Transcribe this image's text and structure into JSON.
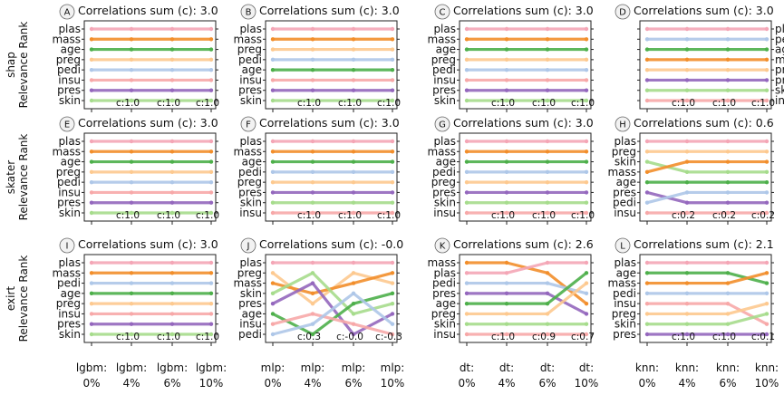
{
  "row_labels": [
    "shap\nRelevance Rank",
    "skater\nRelevance Rank",
    "exirt\nRelevance Rank"
  ],
  "x_tick_labels": [
    [
      "lgbm:\n0%",
      "lgbm:\n4%",
      "lgbm:\n6%",
      "lgbm:\n10%"
    ],
    [
      "mlp:\n0%",
      "mlp:\n4%",
      "mlp:\n6%",
      "mlp:\n10%"
    ],
    [
      "dt:\n0%",
      "dt:\n4%",
      "dt:\n6%",
      "dt:\n10%"
    ],
    [
      "knn:\n0%",
      "knn:\n4%",
      "knn:\n6%",
      "knn:\n10%"
    ]
  ],
  "feature_colors": {
    "plas": "#f4a6b6",
    "mass": "#f28e2b",
    "age": "#4daf4a",
    "preg": "#fdc98f",
    "pedi": "#aec7e8",
    "insu": "#f7a8a8",
    "pres": "#9467bd",
    "skin": "#a6dc8c"
  },
  "chart_data": [
    {
      "id": "A",
      "type": "line",
      "title": "Correlations sum (c): 3.0",
      "labels_side": "left",
      "order": [
        [
          "plas",
          "mass",
          "age",
          "preg",
          "pedi",
          "insu",
          "pres",
          "skin"
        ],
        [
          "plas",
          "mass",
          "age",
          "preg",
          "pedi",
          "insu",
          "pres",
          "skin"
        ],
        [
          "plas",
          "mass",
          "age",
          "preg",
          "pedi",
          "insu",
          "pres",
          "skin"
        ],
        [
          "plas",
          "mass",
          "age",
          "preg",
          "pedi",
          "insu",
          "pres",
          "skin"
        ]
      ],
      "c_labels": [
        "c:1.0",
        "c:1.0",
        "c:1.0"
      ]
    },
    {
      "id": "B",
      "type": "line",
      "title": "Correlations sum (c): 3.0",
      "labels_side": "left",
      "order": [
        [
          "plas",
          "mass",
          "preg",
          "pedi",
          "age",
          "insu",
          "pres",
          "skin"
        ],
        [
          "plas",
          "mass",
          "preg",
          "pedi",
          "age",
          "insu",
          "pres",
          "skin"
        ],
        [
          "plas",
          "mass",
          "preg",
          "pedi",
          "age",
          "insu",
          "pres",
          "skin"
        ],
        [
          "plas",
          "mass",
          "preg",
          "pedi",
          "age",
          "insu",
          "pres",
          "skin"
        ]
      ],
      "c_labels": [
        "c:1.0",
        "c:1.0",
        "c:1.0"
      ]
    },
    {
      "id": "C",
      "type": "line",
      "title": "Correlations sum (c): 3.0",
      "labels_side": "left",
      "order": [
        [
          "plas",
          "mass",
          "age",
          "preg",
          "pedi",
          "insu",
          "pres",
          "skin"
        ],
        [
          "plas",
          "mass",
          "age",
          "preg",
          "pedi",
          "insu",
          "pres",
          "skin"
        ],
        [
          "plas",
          "mass",
          "age",
          "preg",
          "pedi",
          "insu",
          "pres",
          "skin"
        ],
        [
          "plas",
          "mass",
          "age",
          "preg",
          "pedi",
          "insu",
          "pres",
          "skin"
        ]
      ],
      "c_labels": [
        "c:1.0",
        "c:1.0",
        "c:1.0"
      ]
    },
    {
      "id": "D",
      "type": "line",
      "title": "Correlations sum (c): 3.0",
      "labels_side": "right",
      "order": [
        [
          "plas",
          "pedi",
          "age",
          "mass",
          "preg",
          "pres",
          "skin",
          "insu"
        ],
        [
          "plas",
          "pedi",
          "age",
          "mass",
          "preg",
          "pres",
          "skin",
          "insu"
        ],
        [
          "plas",
          "pedi",
          "age",
          "mass",
          "preg",
          "pres",
          "skin",
          "insu"
        ],
        [
          "plas",
          "pedi",
          "age",
          "mass",
          "preg",
          "pres",
          "skin",
          "insu"
        ]
      ],
      "c_labels": [
        "c:1.0",
        "c:1.0",
        "c:1.0"
      ]
    },
    {
      "id": "E",
      "type": "line",
      "title": "Correlations sum (c): 3.0",
      "labels_side": "left",
      "order": [
        [
          "plas",
          "mass",
          "age",
          "preg",
          "pedi",
          "insu",
          "pres",
          "skin"
        ],
        [
          "plas",
          "mass",
          "age",
          "preg",
          "pedi",
          "insu",
          "pres",
          "skin"
        ],
        [
          "plas",
          "mass",
          "age",
          "preg",
          "pedi",
          "insu",
          "pres",
          "skin"
        ],
        [
          "plas",
          "mass",
          "age",
          "preg",
          "pedi",
          "insu",
          "pres",
          "skin"
        ]
      ],
      "c_labels": [
        "c:1.0",
        "c:1.0",
        "c:1.0"
      ]
    },
    {
      "id": "F",
      "type": "line",
      "title": "Correlations sum (c): 3.0",
      "labels_side": "left",
      "order": [
        [
          "plas",
          "mass",
          "age",
          "pedi",
          "preg",
          "pres",
          "skin",
          "insu"
        ],
        [
          "plas",
          "mass",
          "age",
          "pedi",
          "preg",
          "pres",
          "skin",
          "insu"
        ],
        [
          "plas",
          "mass",
          "age",
          "pedi",
          "preg",
          "pres",
          "skin",
          "insu"
        ],
        [
          "plas",
          "mass",
          "age",
          "pedi",
          "preg",
          "pres",
          "skin",
          "insu"
        ]
      ],
      "c_labels": [
        "c:1.0",
        "c:1.0",
        "c:1.0"
      ]
    },
    {
      "id": "G",
      "type": "line",
      "title": "Correlations sum (c): 3.0",
      "labels_side": "left",
      "order": [
        [
          "plas",
          "mass",
          "age",
          "pedi",
          "preg",
          "pres",
          "skin",
          "insu"
        ],
        [
          "plas",
          "mass",
          "age",
          "pedi",
          "preg",
          "pres",
          "skin",
          "insu"
        ],
        [
          "plas",
          "mass",
          "age",
          "pedi",
          "preg",
          "pres",
          "skin",
          "insu"
        ],
        [
          "plas",
          "mass",
          "age",
          "pedi",
          "preg",
          "pres",
          "skin",
          "insu"
        ]
      ],
      "c_labels": [
        "c:1.0",
        "c:1.0",
        "c:1.0"
      ]
    },
    {
      "id": "H",
      "type": "line",
      "title": "Correlations sum (c): 0.6",
      "labels_side": "left",
      "order": [
        [
          "plas",
          "preg",
          "skin",
          "mass",
          "age",
          "pres",
          "pedi",
          "insu"
        ],
        [
          "plas",
          "preg",
          "mass",
          "skin",
          "age",
          "pedi",
          "pres",
          "insu"
        ],
        [
          "plas",
          "preg",
          "mass",
          "skin",
          "age",
          "pedi",
          "pres",
          "insu"
        ],
        [
          "plas",
          "preg",
          "mass",
          "skin",
          "age",
          "pedi",
          "pres",
          "insu"
        ]
      ],
      "c_labels": [
        "c:0.2",
        "c:0.2",
        "c:0.2"
      ]
    },
    {
      "id": "I",
      "type": "line",
      "title": "Correlations sum (c): 3.0",
      "labels_side": "left",
      "order": [
        [
          "plas",
          "mass",
          "pedi",
          "age",
          "preg",
          "insu",
          "pres",
          "skin"
        ],
        [
          "plas",
          "mass",
          "pedi",
          "age",
          "preg",
          "insu",
          "pres",
          "skin"
        ],
        [
          "plas",
          "mass",
          "pedi",
          "age",
          "preg",
          "insu",
          "pres",
          "skin"
        ],
        [
          "plas",
          "mass",
          "pedi",
          "age",
          "preg",
          "insu",
          "pres",
          "skin"
        ]
      ],
      "c_labels": [
        "c:1.0",
        "c:1.0",
        "c:1.0"
      ]
    },
    {
      "id": "J",
      "type": "line",
      "title": "Correlations sum (c): -0.0",
      "labels_side": "left",
      "order": [
        [
          "plas",
          "preg",
          "mass",
          "skin",
          "pres",
          "age",
          "insu",
          "pedi"
        ],
        [
          "plas",
          "skin",
          "pres",
          "mass",
          "preg",
          "insu",
          "pedi",
          "age"
        ],
        [
          "plas",
          "preg",
          "mass",
          "pedi",
          "age",
          "skin",
          "insu",
          "pres"
        ],
        [
          "plas",
          "mass",
          "preg",
          "age",
          "skin",
          "pres",
          "pedi",
          "insu"
        ]
      ],
      "c_labels": [
        "c:0.3",
        "c:-0.0",
        "c:-0.3"
      ]
    },
    {
      "id": "K",
      "type": "line",
      "title": "Correlations sum (c): 2.6",
      "labels_side": "left",
      "order": [
        [
          "mass",
          "plas",
          "pedi",
          "pres",
          "age",
          "preg",
          "skin",
          "insu"
        ],
        [
          "mass",
          "plas",
          "pedi",
          "pres",
          "age",
          "preg",
          "skin",
          "insu"
        ],
        [
          "plas",
          "mass",
          "pedi",
          "pres",
          "age",
          "preg",
          "skin",
          "insu"
        ],
        [
          "plas",
          "age",
          "preg",
          "pedi",
          "mass",
          "pres",
          "skin",
          "insu"
        ]
      ],
      "c_labels": [
        "c:1.0",
        "c:0.9",
        "c:0.7"
      ]
    },
    {
      "id": "L",
      "type": "line",
      "title": "Correlations sum (c): 2.1",
      "labels_side": "left",
      "order": [
        [
          "plas",
          "age",
          "mass",
          "pedi",
          "insu",
          "preg",
          "skin",
          "pres"
        ],
        [
          "plas",
          "age",
          "mass",
          "pedi",
          "insu",
          "preg",
          "skin",
          "pres"
        ],
        [
          "plas",
          "age",
          "mass",
          "pedi",
          "insu",
          "preg",
          "skin",
          "pres"
        ],
        [
          "plas",
          "mass",
          "age",
          "pedi",
          "preg",
          "skin",
          "insu",
          "pres"
        ]
      ],
      "c_labels": [
        "c:1.0",
        "c:1.0",
        "c:0.1"
      ]
    }
  ]
}
